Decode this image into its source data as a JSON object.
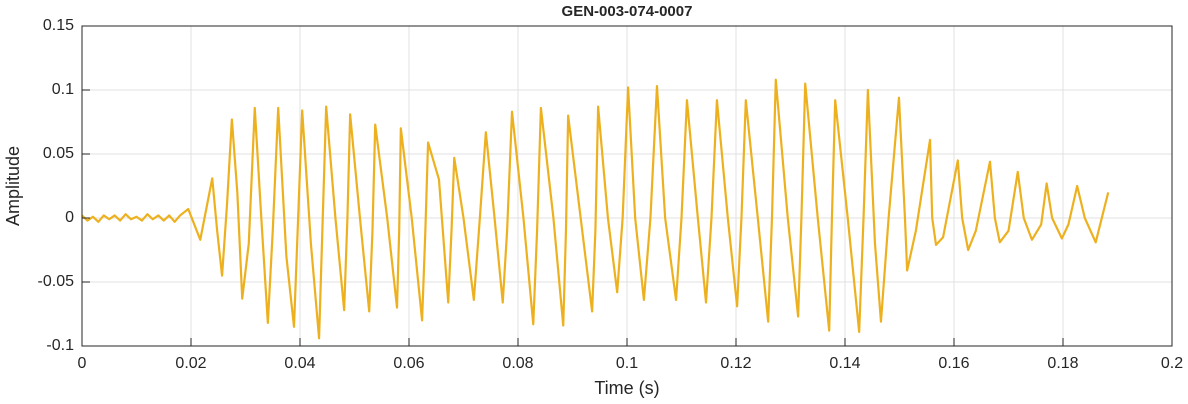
{
  "chart_data": {
    "type": "line",
    "title": "GEN-003-074-0007",
    "xlabel": "Time (s)",
    "ylabel": "Amplitude",
    "xlim": [
      0,
      0.2
    ],
    "xticks": [
      0,
      0.02,
      0.04,
      0.06,
      0.08,
      0.1,
      0.12,
      0.14,
      0.16,
      0.18,
      0.2
    ],
    "ylim": [
      -0.1,
      0.15
    ],
    "yticks": [
      -0.1,
      -0.05,
      0,
      0.05,
      0.1,
      0.15
    ],
    "grid": true,
    "series": [
      {
        "name": "Amplitude",
        "color": "#EDB120",
        "x": [
          0,
          0.001,
          0.002,
          0.003,
          0.004,
          0.005,
          0.006,
          0.007,
          0.008,
          0.009,
          0.01,
          0.011,
          0.012,
          0.013,
          0.014,
          0.015,
          0.016,
          0.017,
          0.018,
          0.0195,
          0.0217,
          0.0239,
          0.0248,
          0.0257,
          0.0266,
          0.0275,
          0.0285,
          0.0294,
          0.0306,
          0.0317,
          0.0329,
          0.0341,
          0.035,
          0.036,
          0.0375,
          0.0389,
          0.0397,
          0.0404,
          0.042,
          0.0435,
          0.0441,
          0.0448,
          0.0465,
          0.0481,
          0.0487,
          0.0492,
          0.051,
          0.0527,
          0.0533,
          0.0538,
          0.056,
          0.0578,
          0.0582,
          0.0585,
          0.0605,
          0.0624,
          0.063,
          0.0635,
          0.0655,
          0.0672,
          0.0678,
          0.0683,
          0.07,
          0.0719,
          0.073,
          0.0741,
          0.0757,
          0.0772,
          0.078,
          0.0789,
          0.081,
          0.0828,
          0.0835,
          0.0842,
          0.0865,
          0.0883,
          0.0888,
          0.0892,
          0.0915,
          0.0936,
          0.0942,
          0.0947,
          0.0965,
          0.0982,
          0.0992,
          0.1002,
          0.1015,
          0.1031,
          0.1043,
          0.1055,
          0.107,
          0.109,
          0.11,
          0.111,
          0.113,
          0.1145,
          0.1155,
          0.1165,
          0.1185,
          0.1202,
          0.121,
          0.1218,
          0.124,
          0.1259,
          0.1266,
          0.1273,
          0.1295,
          0.1314,
          0.132,
          0.1327,
          0.135,
          0.1371,
          0.1376,
          0.1382,
          0.1405,
          0.1426,
          0.1434,
          0.1442,
          0.1455,
          0.1466,
          0.148,
          0.1499,
          0.151,
          0.1514,
          0.153,
          0.1556,
          0.156,
          0.1567,
          0.158,
          0.1607,
          0.1615,
          0.1626,
          0.164,
          0.1666,
          0.1675,
          0.1684,
          0.17,
          0.1717,
          0.1728,
          0.1743,
          0.176,
          0.177,
          0.178,
          0.1798,
          0.181,
          0.1826,
          0.184,
          0.186,
          0.1883
        ],
        "values": [
          0.002,
          -0.002,
          0.001,
          -0.003,
          0.002,
          -0.001,
          0.002,
          -0.002,
          0.003,
          -0.001,
          0.001,
          -0.002,
          0.003,
          -0.001,
          0.002,
          -0.002,
          0.002,
          -0.003,
          0.002,
          0.007,
          -0.017,
          0.031,
          -0.01,
          -0.045,
          0.01,
          0.077,
          0.02,
          -0.063,
          -0.02,
          0.086,
          0.0,
          -0.082,
          -0.01,
          0.086,
          -0.03,
          -0.085,
          0.005,
          0.084,
          -0.02,
          -0.094,
          -0.01,
          0.087,
          0.0,
          -0.072,
          0.0,
          0.081,
          0.0,
          -0.073,
          -0.01,
          0.073,
          0.0,
          -0.07,
          -0.01,
          0.07,
          0.0,
          -0.08,
          -0.01,
          0.059,
          0.03,
          -0.066,
          -0.01,
          0.047,
          0.0,
          -0.064,
          0.0,
          0.067,
          0.0,
          -0.066,
          -0.01,
          0.083,
          0.0,
          -0.083,
          -0.01,
          0.086,
          0.0,
          -0.084,
          -0.01,
          0.08,
          0.0,
          -0.073,
          -0.01,
          0.087,
          0.0,
          -0.058,
          0.0,
          0.102,
          0.0,
          -0.064,
          0.0,
          0.103,
          0.0,
          -0.064,
          0.0,
          0.092,
          0.0,
          -0.066,
          0.0,
          0.092,
          0.0,
          -0.069,
          0.0,
          0.092,
          0.0,
          -0.081,
          0.0,
          0.108,
          0.0,
          -0.077,
          0.0,
          0.105,
          0.0,
          -0.088,
          0.0,
          0.092,
          0.0,
          -0.089,
          0.0,
          0.1,
          -0.02,
          -0.081,
          0.0,
          0.094,
          0.0,
          -0.041,
          -0.01,
          0.061,
          0.0,
          -0.021,
          -0.015,
          0.045,
          0.0,
          -0.025,
          -0.01,
          0.044,
          0.0,
          -0.019,
          -0.01,
          0.036,
          0.0,
          -0.017,
          -0.005,
          0.027,
          0.0,
          -0.016,
          -0.005,
          0.025,
          0.0,
          -0.019,
          0.02
        ]
      }
    ]
  }
}
